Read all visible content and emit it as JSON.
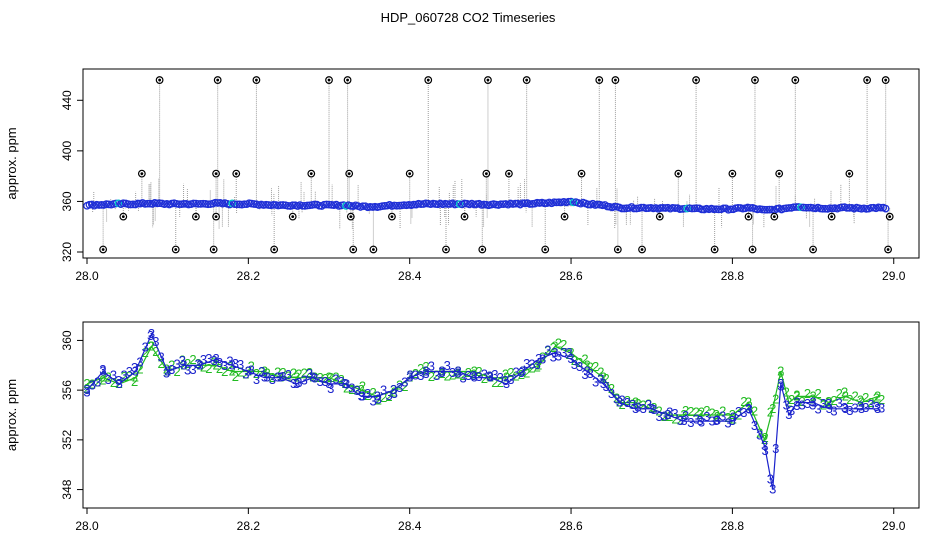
{
  "title": "HDP_060728  CO2 Timeseries",
  "colors": {
    "raw_line": "#9e9e9e",
    "outlier": "#000000",
    "main_series": "#1f2fd6",
    "highlight": "#00c8c8",
    "series_2": "#22bb22",
    "series_3": "#1a22cc"
  },
  "chart_data": [
    {
      "type": "line",
      "panel": "top",
      "ylabel": "approx. ppm",
      "xlabel": "",
      "xlim": [
        28.0,
        29.0
      ],
      "ylim": [
        320,
        460
      ],
      "x_ticks": [
        "28.0",
        "28.2",
        "28.4",
        "28.6",
        "28.8",
        "29.0"
      ],
      "y_ticks": [
        "320",
        "360",
        "400",
        "440"
      ],
      "grid": false,
      "series": [
        {
          "role": "smoothed",
          "x": [
            28.0,
            28.02,
            28.04,
            28.06,
            28.08,
            28.1,
            28.12,
            28.14,
            28.16,
            28.18,
            28.2,
            28.22,
            28.24,
            28.26,
            28.28,
            28.3,
            28.32,
            28.34,
            28.36,
            28.38,
            28.4,
            28.42,
            28.44,
            28.46,
            28.48,
            28.5,
            28.52,
            28.54,
            28.56,
            28.58,
            28.6,
            28.62,
            28.64,
            28.66,
            28.68,
            28.7,
            28.72,
            28.74,
            28.76,
            28.78,
            28.8,
            28.82,
            28.84,
            28.86,
            28.88,
            28.9,
            28.92,
            28.94,
            28.96,
            28.98,
            28.99
          ],
          "y": [
            357,
            357.5,
            358,
            358,
            358.5,
            358,
            358,
            358,
            358.5,
            358,
            358,
            357.5,
            357,
            357,
            357,
            357,
            357,
            356,
            356,
            357,
            357.5,
            358,
            358,
            358,
            358,
            357.5,
            358,
            358,
            358.5,
            359,
            360,
            358,
            357,
            355,
            355,
            355,
            354.5,
            354.5,
            354,
            354,
            354,
            355,
            353,
            354,
            356,
            355,
            354.5,
            355,
            354.5,
            355,
            354.5
          ]
        }
      ],
      "outliers": [
        {
          "x": 28.02,
          "y": 322
        },
        {
          "x": 28.045,
          "y": 348
        },
        {
          "x": 28.068,
          "y": 382
        },
        {
          "x": 28.09,
          "y": 456
        },
        {
          "x": 28.11,
          "y": 322
        },
        {
          "x": 28.135,
          "y": 348
        },
        {
          "x": 28.157,
          "y": 322
        },
        {
          "x": 28.16,
          "y": 348
        },
        {
          "x": 28.16,
          "y": 382
        },
        {
          "x": 28.162,
          "y": 456
        },
        {
          "x": 28.185,
          "y": 382
        },
        {
          "x": 28.21,
          "y": 456
        },
        {
          "x": 28.232,
          "y": 322
        },
        {
          "x": 28.255,
          "y": 348
        },
        {
          "x": 28.278,
          "y": 382
        },
        {
          "x": 28.3,
          "y": 456
        },
        {
          "x": 28.323,
          "y": 456
        },
        {
          "x": 28.325,
          "y": 382
        },
        {
          "x": 28.327,
          "y": 348
        },
        {
          "x": 28.33,
          "y": 322
        },
        {
          "x": 28.355,
          "y": 322
        },
        {
          "x": 28.378,
          "y": 348
        },
        {
          "x": 28.4,
          "y": 382
        },
        {
          "x": 28.423,
          "y": 456
        },
        {
          "x": 28.445,
          "y": 322
        },
        {
          "x": 28.468,
          "y": 348
        },
        {
          "x": 28.49,
          "y": 322
        },
        {
          "x": 28.495,
          "y": 382
        },
        {
          "x": 28.497,
          "y": 456
        },
        {
          "x": 28.523,
          "y": 382
        },
        {
          "x": 28.545,
          "y": 456
        },
        {
          "x": 28.568,
          "y": 322
        },
        {
          "x": 28.592,
          "y": 348
        },
        {
          "x": 28.613,
          "y": 382
        },
        {
          "x": 28.635,
          "y": 456
        },
        {
          "x": 28.655,
          "y": 456
        },
        {
          "x": 28.658,
          "y": 322
        },
        {
          "x": 28.688,
          "y": 322
        },
        {
          "x": 28.71,
          "y": 348
        },
        {
          "x": 28.733,
          "y": 382
        },
        {
          "x": 28.755,
          "y": 456
        },
        {
          "x": 28.778,
          "y": 322
        },
        {
          "x": 28.8,
          "y": 382
        },
        {
          "x": 28.82,
          "y": 348
        },
        {
          "x": 28.825,
          "y": 322
        },
        {
          "x": 28.828,
          "y": 456
        },
        {
          "x": 28.852,
          "y": 348
        },
        {
          "x": 28.858,
          "y": 382
        },
        {
          "x": 28.878,
          "y": 456
        },
        {
          "x": 28.9,
          "y": 322
        },
        {
          "x": 28.923,
          "y": 348
        },
        {
          "x": 28.945,
          "y": 382
        },
        {
          "x": 28.967,
          "y": 456
        },
        {
          "x": 28.99,
          "y": 456
        },
        {
          "x": 28.993,
          "y": 322
        },
        {
          "x": 28.995,
          "y": 348
        }
      ]
    },
    {
      "type": "line",
      "panel": "bottom",
      "ylabel": "approx. ppm",
      "xlabel": "",
      "xlim": [
        28.0,
        29.0
      ],
      "ylim": [
        347,
        361
      ],
      "x_ticks": [
        "28.0",
        "28.2",
        "28.4",
        "28.6",
        "28.8",
        "29.0"
      ],
      "y_ticks": [
        "348",
        "352",
        "356",
        "360"
      ],
      "grid": false,
      "series": [
        {
          "marker": "2",
          "x": [
            28.0,
            28.02,
            28.04,
            28.06,
            28.08,
            28.1,
            28.12,
            28.14,
            28.16,
            28.18,
            28.2,
            28.22,
            28.24,
            28.26,
            28.28,
            28.3,
            28.32,
            28.34,
            28.36,
            28.38,
            28.4,
            28.42,
            28.44,
            28.46,
            28.48,
            28.5,
            28.52,
            28.54,
            28.56,
            28.58,
            28.6,
            28.62,
            28.64,
            28.66,
            28.68,
            28.7,
            28.72,
            28.74,
            28.76,
            28.78,
            28.8,
            28.82,
            28.84,
            28.85,
            28.86,
            28.87,
            28.88,
            28.9,
            28.92,
            28.94,
            28.96,
            28.98
          ],
          "y": [
            356.5,
            357.0,
            356.5,
            357.0,
            359.5,
            357.5,
            358.0,
            358.0,
            358.0,
            357.5,
            357.5,
            357.5,
            357.0,
            357.0,
            357.0,
            357.0,
            356.5,
            356.0,
            355.5,
            356.0,
            357.0,
            357.5,
            357.5,
            357.5,
            357.5,
            357.0,
            357.0,
            357.5,
            358.0,
            359.5,
            359.0,
            358.0,
            357.0,
            355.0,
            355.0,
            354.5,
            354.0,
            354.0,
            354.0,
            354.0,
            354.0,
            355.0,
            352.0,
            354.5,
            357.5,
            355.0,
            355.5,
            355.5,
            355.0,
            355.5,
            355.0,
            355.5
          ]
        },
        {
          "marker": "3",
          "x": [
            28.0,
            28.02,
            28.04,
            28.06,
            28.08,
            28.1,
            28.12,
            28.14,
            28.16,
            28.18,
            28.2,
            28.22,
            28.24,
            28.26,
            28.28,
            28.3,
            28.32,
            28.34,
            28.36,
            28.38,
            28.4,
            28.42,
            28.44,
            28.46,
            28.48,
            28.5,
            28.52,
            28.54,
            28.56,
            28.58,
            28.6,
            28.62,
            28.64,
            28.66,
            28.68,
            28.7,
            28.72,
            28.74,
            28.76,
            28.78,
            28.8,
            28.82,
            28.84,
            28.85,
            28.86,
            28.87,
            28.88,
            28.9,
            28.92,
            28.94,
            28.96,
            28.98
          ],
          "y": [
            356.0,
            357.5,
            356.5,
            357.5,
            360.5,
            357.5,
            358.0,
            358.0,
            358.5,
            358.0,
            357.5,
            357.0,
            357.0,
            356.5,
            357.0,
            356.5,
            356.5,
            355.5,
            355.5,
            356.0,
            357.0,
            357.5,
            357.5,
            357.5,
            357.0,
            357.0,
            356.5,
            357.5,
            358.5,
            359.0,
            358.5,
            357.5,
            356.5,
            355.0,
            354.5,
            354.5,
            354.0,
            353.5,
            353.5,
            353.5,
            353.5,
            354.5,
            351.5,
            348.0,
            356.5,
            354.0,
            355.0,
            355.0,
            354.5,
            354.5,
            354.5,
            354.5
          ]
        }
      ]
    }
  ]
}
